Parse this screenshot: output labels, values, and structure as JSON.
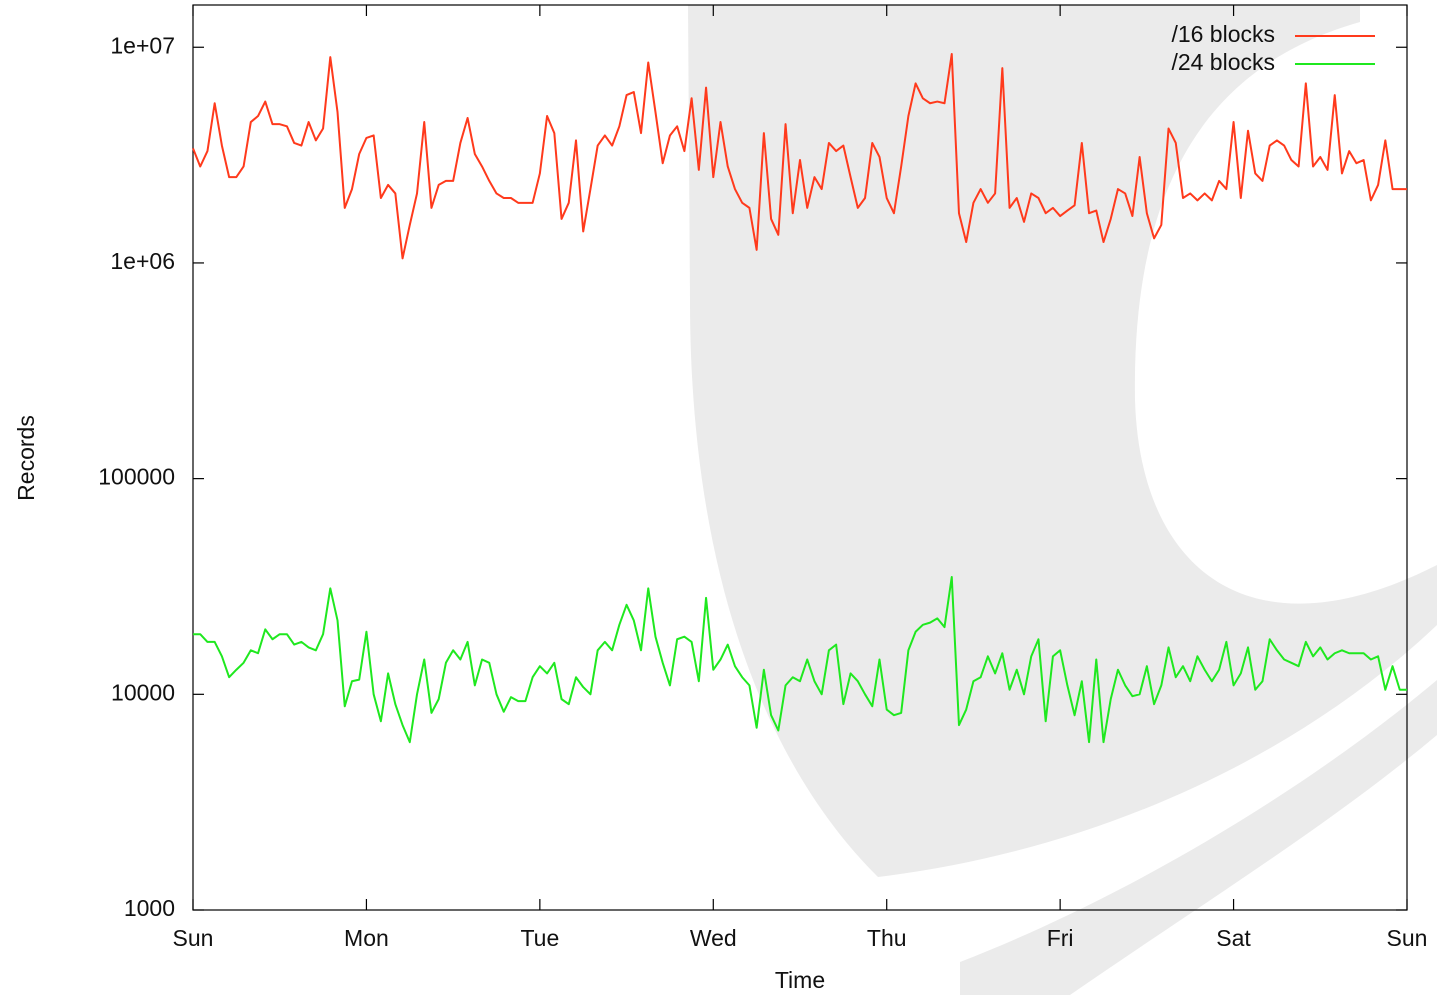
{
  "chart_data": {
    "type": "line",
    "x_label": "Time",
    "y_label": "Records",
    "log_y": true,
    "legend": "top-right",
    "xlim": [
      0,
      168
    ],
    "xticks": [
      {
        "value": 0,
        "label": "Sun"
      },
      {
        "value": 24,
        "label": "Mon"
      },
      {
        "value": 48,
        "label": "Tue"
      },
      {
        "value": 72,
        "label": "Wed"
      },
      {
        "value": 96,
        "label": "Thu"
      },
      {
        "value": 120,
        "label": "Fri"
      },
      {
        "value": 144,
        "label": "Sat"
      },
      {
        "value": 168,
        "label": "Sun"
      }
    ],
    "ylim": [
      1000,
      15700000
    ],
    "yticks": [
      1000,
      10000,
      100000,
      {
        "value": 1000000,
        "label": "1e+06"
      },
      {
        "value": 10000000,
        "label": "1e+07"
      }
    ],
    "x": [
      0,
      1,
      2,
      3,
      4,
      5,
      6,
      7,
      8,
      9,
      10,
      11,
      12,
      13,
      14,
      15,
      16,
      17,
      18,
      19,
      20,
      21,
      22,
      23,
      24,
      25,
      26,
      27,
      28,
      29,
      30,
      31,
      32,
      33,
      34,
      35,
      36,
      37,
      38,
      39,
      40,
      41,
      42,
      43,
      44,
      45,
      46,
      47,
      48,
      49,
      50,
      51,
      52,
      53,
      54,
      55,
      56,
      57,
      58,
      59,
      60,
      61,
      62,
      63,
      64,
      65,
      66,
      67,
      68,
      69,
      70,
      71,
      72,
      73,
      74,
      75,
      76,
      77,
      78,
      79,
      80,
      81,
      82,
      83,
      84,
      85,
      86,
      87,
      88,
      89,
      90,
      91,
      92,
      93,
      94,
      95,
      96,
      97,
      98,
      99,
      100,
      101,
      102,
      103,
      104,
      105,
      106,
      107,
      108,
      109,
      110,
      111,
      112,
      113,
      114,
      115,
      116,
      117,
      118,
      119,
      120,
      121,
      122,
      123,
      124,
      125,
      126,
      127,
      128,
      129,
      130,
      131,
      132,
      133,
      134,
      135,
      136,
      137,
      138,
      139,
      140,
      141,
      142,
      143,
      144,
      145,
      146,
      147,
      148,
      149,
      150,
      151,
      152,
      153,
      154,
      155,
      156,
      157,
      158,
      159,
      160,
      161,
      162,
      163,
      164,
      165,
      166,
      167,
      168
    ],
    "series": [
      {
        "name": "/16 blocks",
        "color": "#ff3a1c",
        "values": [
          3400000,
          2800000,
          3300000,
          5500000,
          3500000,
          2500000,
          2500000,
          2800000,
          4500000,
          4800000,
          5600000,
          4400000,
          4400000,
          4300000,
          3600000,
          3500000,
          4500000,
          3700000,
          4200000,
          9000000,
          5000000,
          1800000,
          2200000,
          3200000,
          3800000,
          3900000,
          2000000,
          2300000,
          2100000,
          1050000,
          1500000,
          2100000,
          4500000,
          1800000,
          2300000,
          2400000,
          2400000,
          3600000,
          4700000,
          3200000,
          2800000,
          2400000,
          2100000,
          2000000,
          2000000,
          1900000,
          1900000,
          1900000,
          2600000,
          4800000,
          4000000,
          1600000,
          1900000,
          3700000,
          1400000,
          2200000,
          3500000,
          3900000,
          3500000,
          4300000,
          6000000,
          6200000,
          4000000,
          8500000,
          5000000,
          2900000,
          3900000,
          4300000,
          3300000,
          5800000,
          2700000,
          6500000,
          2500000,
          4500000,
          2800000,
          2200000,
          1900000,
          1800000,
          1150000,
          4000000,
          1600000,
          1350000,
          4400000,
          1700000,
          3000000,
          1800000,
          2500000,
          2200000,
          3600000,
          3300000,
          3500000,
          2500000,
          1800000,
          2000000,
          3600000,
          3100000,
          2000000,
          1700000,
          2800000,
          4800000,
          6800000,
          5800000,
          5500000,
          5600000,
          5500000,
          9300000,
          1700000,
          1250000,
          1900000,
          2200000,
          1900000,
          2100000,
          8000000,
          1800000,
          2000000,
          1550000,
          2100000,
          2000000,
          1700000,
          1800000,
          1650000,
          1750000,
          1850000,
          3600000,
          1700000,
          1750000,
          1250000,
          1600000,
          2200000,
          2100000,
          1650000,
          3100000,
          1700000,
          1300000,
          1500000,
          4200000,
          3600000,
          2000000,
          2100000,
          1950000,
          2100000,
          1950000,
          2400000,
          2200000,
          4500000,
          2000000,
          4100000,
          2600000,
          2400000,
          3500000,
          3700000,
          3500000,
          3000000,
          2800000,
          6800000,
          2800000,
          3100000,
          2700000,
          6000000,
          2600000,
          3300000,
          2900000,
          3000000,
          1950000,
          2300000,
          3700000,
          2200000,
          2200000,
          2200000
        ]
      },
      {
        "name": "/24 blocks",
        "color": "#1fe81f",
        "values": [
          19000,
          19000,
          17500,
          17500,
          15000,
          12000,
          13000,
          14000,
          16000,
          15500,
          20000,
          18000,
          19000,
          19000,
          17000,
          17500,
          16500,
          16000,
          19000,
          31000,
          22000,
          8800,
          11500,
          11700,
          19500,
          10000,
          7500,
          12500,
          9000,
          7200,
          6000,
          10000,
          14500,
          8200,
          9500,
          14000,
          16000,
          14500,
          17500,
          11000,
          14500,
          14000,
          10000,
          8300,
          9700,
          9300,
          9300,
          12000,
          13500,
          12500,
          14000,
          9500,
          9000,
          12000,
          10800,
          10000,
          16000,
          17500,
          16000,
          21000,
          26000,
          22000,
          16000,
          31000,
          18500,
          14000,
          11000,
          18000,
          18500,
          17500,
          11500,
          28000,
          13000,
          14500,
          17000,
          13500,
          12000,
          11000,
          7000,
          13000,
          8000,
          6800,
          11000,
          12000,
          11500,
          14500,
          11500,
          10000,
          16000,
          17000,
          9000,
          12500,
          11500,
          10000,
          8800,
          14500,
          8500,
          8000,
          8200,
          16000,
          19500,
          21000,
          21500,
          22500,
          20500,
          35000,
          7200,
          8500,
          11500,
          12000,
          15000,
          12500,
          15500,
          10500,
          13000,
          10000,
          15000,
          18000,
          7500,
          15000,
          16000,
          11000,
          8000,
          11500,
          6000,
          14500,
          6000,
          9500,
          13000,
          11000,
          9800,
          10000,
          13500,
          9000,
          11000,
          16500,
          12000,
          13500,
          11500,
          15000,
          13000,
          11500,
          13000,
          17500,
          11000,
          12500,
          16500,
          10500,
          11500,
          18000,
          16000,
          14500,
          14000,
          13500,
          17500,
          15000,
          16500,
          14500,
          15500,
          16000,
          15500,
          15500,
          15500,
          14500,
          15000,
          10500,
          13500,
          10500,
          10500
        ]
      }
    ]
  }
}
